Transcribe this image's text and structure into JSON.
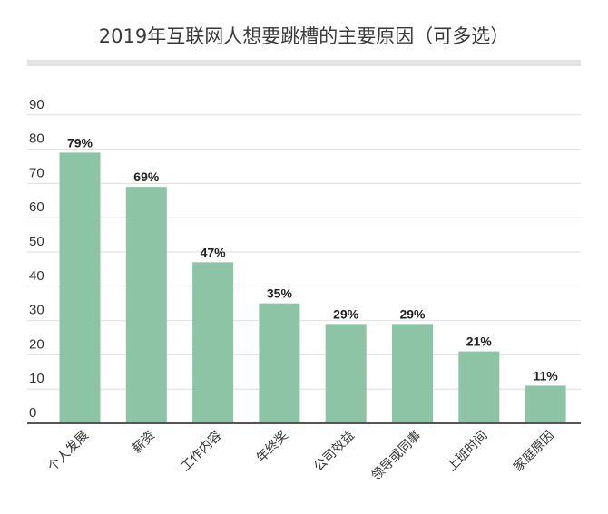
{
  "title": "2019年互联网人想要跳槽的主要原因（可多选）",
  "chart_data": {
    "type": "bar",
    "title": "2019年互联网人想要跳槽的主要原因（可多选）",
    "categories": [
      "个人发展",
      "薪资",
      "工作内容",
      "年终奖",
      "公司效益",
      "领导或同事",
      "上班时间",
      "家庭原因"
    ],
    "values": [
      79,
      69,
      47,
      35,
      29,
      29,
      21,
      11
    ],
    "value_labels": [
      "79%",
      "69%",
      "47%",
      "35%",
      "29%",
      "29%",
      "21%",
      "11%"
    ],
    "yticks": [
      0,
      10,
      20,
      30,
      40,
      50,
      60,
      70,
      80,
      90
    ],
    "ylim": [
      0,
      90
    ],
    "xlabel": "",
    "ylabel": "",
    "grid": true,
    "bar_color": "#8dc4a6"
  }
}
